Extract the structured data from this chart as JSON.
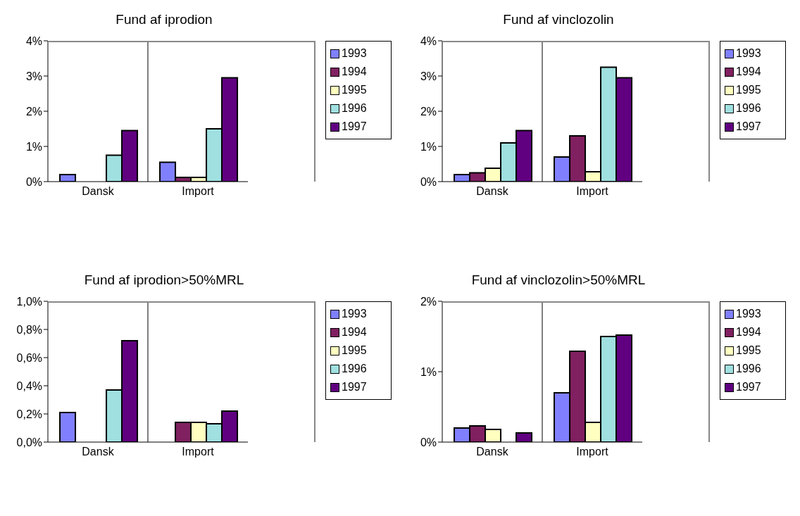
{
  "chart_data": [
    {
      "type": "bar",
      "title": "Fund af iprodion",
      "categories": [
        "Dansk",
        "Import"
      ],
      "ylim": [
        0,
        4
      ],
      "yticks": [
        {
          "value": 0,
          "label": "0%"
        },
        {
          "value": 1,
          "label": "1%"
        },
        {
          "value": 2,
          "label": "2%"
        },
        {
          "value": 3,
          "label": "3%"
        },
        {
          "value": 4,
          "label": "4%"
        }
      ],
      "grid": "x",
      "legend": "right",
      "series": [
        {
          "name": "1993",
          "color": "#8080ff",
          "values": [
            0.2,
            0.55
          ]
        },
        {
          "name": "1994",
          "color": "#802060",
          "values": [
            0,
            0.12
          ]
        },
        {
          "name": "1995",
          "color": "#ffffc0",
          "values": [
            0,
            0.12
          ]
        },
        {
          "name": "1996",
          "color": "#a0e0e0",
          "values": [
            0.75,
            1.5
          ]
        },
        {
          "name": "1997",
          "color": "#600080",
          "values": [
            1.45,
            2.95
          ]
        }
      ]
    },
    {
      "type": "bar",
      "title": "Fund af vinclozolin",
      "categories": [
        "Dansk",
        "Import"
      ],
      "ylim": [
        0,
        4
      ],
      "yticks": [
        {
          "value": 0,
          "label": "0%"
        },
        {
          "value": 1,
          "label": "1%"
        },
        {
          "value": 2,
          "label": "2%"
        },
        {
          "value": 3,
          "label": "3%"
        },
        {
          "value": 4,
          "label": "4%"
        }
      ],
      "grid": "x",
      "legend": "right",
      "series": [
        {
          "name": "1993",
          "color": "#8080ff",
          "values": [
            0.2,
            0.7
          ]
        },
        {
          "name": "1994",
          "color": "#802060",
          "values": [
            0.25,
            1.3
          ]
        },
        {
          "name": "1995",
          "color": "#ffffc0",
          "values": [
            0.38,
            0.28
          ]
        },
        {
          "name": "1996",
          "color": "#a0e0e0",
          "values": [
            1.1,
            3.25
          ]
        },
        {
          "name": "1997",
          "color": "#600080",
          "values": [
            1.45,
            2.95
          ]
        }
      ]
    },
    {
      "type": "bar",
      "title": "Fund af iprodion>50%MRL",
      "categories": [
        "Dansk",
        "Import"
      ],
      "ylim": [
        0,
        1
      ],
      "yticks": [
        {
          "value": 0,
          "label": "0,0%"
        },
        {
          "value": 0.2,
          "label": "0,2%"
        },
        {
          "value": 0.4,
          "label": "0,4%"
        },
        {
          "value": 0.6,
          "label": "0,6%"
        },
        {
          "value": 0.8,
          "label": "0,8%"
        },
        {
          "value": 1,
          "label": "1,0%"
        }
      ],
      "grid": "x",
      "legend": "right",
      "series": [
        {
          "name": "1993",
          "color": "#8080ff",
          "values": [
            0.21,
            0
          ]
        },
        {
          "name": "1994",
          "color": "#802060",
          "values": [
            0,
            0.14
          ]
        },
        {
          "name": "1995",
          "color": "#ffffc0",
          "values": [
            0,
            0.14
          ]
        },
        {
          "name": "1996",
          "color": "#a0e0e0",
          "values": [
            0.37,
            0.13
          ]
        },
        {
          "name": "1997",
          "color": "#600080",
          "values": [
            0.72,
            0.22
          ]
        }
      ]
    },
    {
      "type": "bar",
      "title": "Fund af vinclozolin>50%MRL",
      "categories": [
        "Dansk",
        "Import"
      ],
      "ylim": [
        0,
        2
      ],
      "yticks": [
        {
          "value": 0,
          "label": "0%"
        },
        {
          "value": 1,
          "label": "1%"
        },
        {
          "value": 2,
          "label": "2%"
        }
      ],
      "grid": "x",
      "legend": "right",
      "series": [
        {
          "name": "1993",
          "color": "#8080ff",
          "values": [
            0.2,
            0.7
          ]
        },
        {
          "name": "1994",
          "color": "#802060",
          "values": [
            0.23,
            1.29
          ]
        },
        {
          "name": "1995",
          "color": "#ffffc0",
          "values": [
            0.18,
            0.28
          ]
        },
        {
          "name": "1996",
          "color": "#a0e0e0",
          "values": [
            0,
            1.5
          ]
        },
        {
          "name": "1997",
          "color": "#600080",
          "values": [
            0.13,
            1.52
          ]
        }
      ]
    }
  ]
}
